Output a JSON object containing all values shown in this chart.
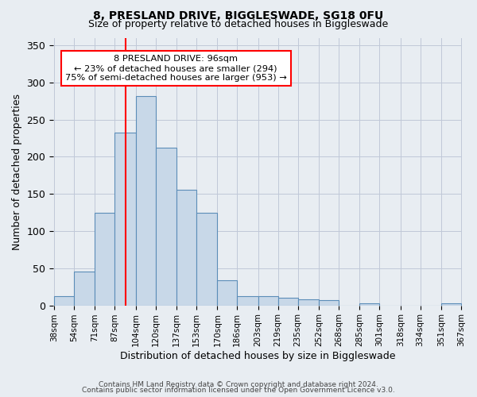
{
  "title1": "8, PRESLAND DRIVE, BIGGLESWADE, SG18 0FU",
  "title2": "Size of property relative to detached houses in Biggleswade",
  "xlabel": "Distribution of detached houses by size in Biggleswade",
  "ylabel": "Number of detached properties",
  "bin_edges": [
    38,
    54,
    71,
    87,
    104,
    120,
    137,
    153,
    170,
    186,
    203,
    219,
    235,
    252,
    268,
    285,
    301,
    318,
    334,
    351,
    367
  ],
  "bin_labels": [
    "38sqm",
    "54sqm",
    "71sqm",
    "87sqm",
    "104sqm",
    "120sqm",
    "137sqm",
    "153sqm",
    "170sqm",
    "186sqm",
    "203sqm",
    "219sqm",
    "235sqm",
    "252sqm",
    "268sqm",
    "285sqm",
    "301sqm",
    "318sqm",
    "334sqm",
    "351sqm",
    "367sqm"
  ],
  "bar_values": [
    12,
    46,
    125,
    232,
    282,
    212,
    155,
    125,
    34,
    12,
    12,
    10,
    8,
    7,
    0,
    3,
    0,
    0,
    0,
    3
  ],
  "bar_color": "#c8d8e8",
  "bar_edge_color": "#5b8db8",
  "red_line_x": 96,
  "annotation_text": "8 PRESLAND DRIVE: 96sqm\n← 23% of detached houses are smaller (294)\n75% of semi-detached houses are larger (953) →",
  "annotation_box_color": "white",
  "annotation_box_edge_color": "red",
  "ylim": [
    0,
    360
  ],
  "yticks": [
    0,
    50,
    100,
    150,
    200,
    250,
    300,
    350
  ],
  "footer1": "Contains HM Land Registry data © Crown copyright and database right 2024.",
  "footer2": "Contains public sector information licensed under the Open Government Licence v3.0.",
  "bg_color": "#e8edf2",
  "plot_bg_color": "#e8edf2",
  "grid_color": "#c0c8d8"
}
